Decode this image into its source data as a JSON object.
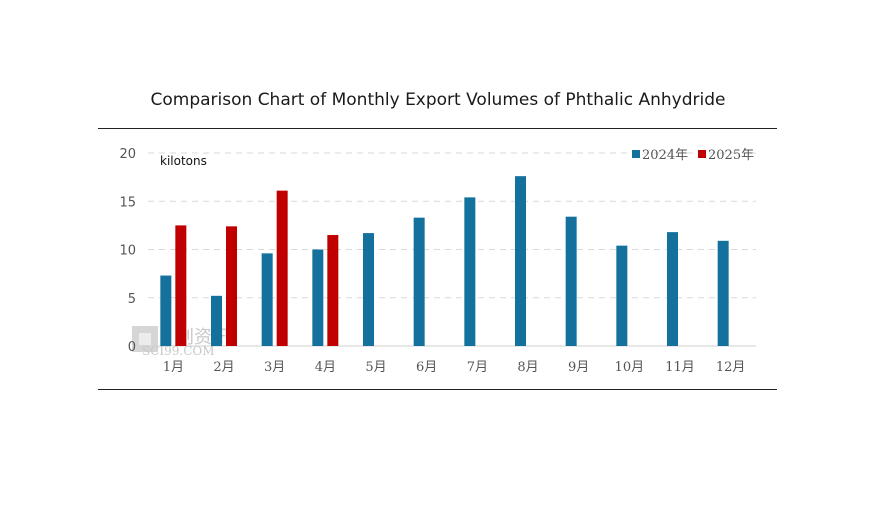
{
  "title": "Comparison Chart of Monthly Export Volumes of Phthalic Anhydride",
  "watermark": {
    "cn": "创资讯",
    "en": "SCI99.COM"
  },
  "chart_data": {
    "type": "bar",
    "unit_label": "kilotons",
    "categories": [
      "1月",
      "2月",
      "3月",
      "4月",
      "5月",
      "6月",
      "7月",
      "8月",
      "9月",
      "10月",
      "11月",
      "12月"
    ],
    "series": [
      {
        "name": "2024年",
        "color": "#14709c",
        "values": [
          7.3,
          5.2,
          9.6,
          10.0,
          11.7,
          13.3,
          15.4,
          17.6,
          13.4,
          10.4,
          11.8,
          10.9
        ]
      },
      {
        "name": "2025年",
        "color": "#c00000",
        "values": [
          12.5,
          12.4,
          16.1,
          11.5,
          null,
          null,
          null,
          null,
          null,
          null,
          null,
          null
        ]
      }
    ],
    "ylim": [
      0,
      20
    ],
    "yticks": [
      0,
      5,
      10,
      15,
      20
    ],
    "grid": true,
    "legend_position": "top-right"
  }
}
